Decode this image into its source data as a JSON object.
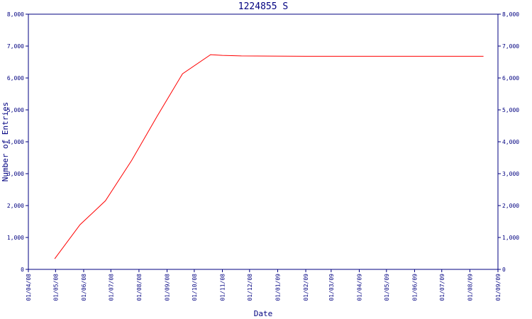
{
  "chart_data": {
    "type": "line",
    "title": "1224855 S",
    "x_label": "Date",
    "y_label": "Number of Entries",
    "x": [
      "2008-04-30",
      "2008-05-28",
      "2008-06-25",
      "2008-07-24",
      "2008-08-21",
      "2008-09-18",
      "2008-10-19",
      "2008-11-01",
      "2008-11-22",
      "2009-02-01",
      "2009-05-01",
      "2009-08-16"
    ],
    "series": [
      {
        "color": "#ff0000",
        "values": [
          330,
          1400,
          2150,
          3420,
          4800,
          6130,
          6730,
          6710,
          6690,
          6680,
          6680,
          6680
        ]
      }
    ],
    "xlim": [
      "2008-04-01",
      "2009-09-01"
    ],
    "xticks": [
      {
        "value": "2008-04-01",
        "label": "01/04/08"
      },
      {
        "value": "2008-05-01",
        "label": "01/05/08"
      },
      {
        "value": "2008-06-01",
        "label": "01/06/08"
      },
      {
        "value": "2008-07-01",
        "label": "01/07/08"
      },
      {
        "value": "2008-08-01",
        "label": "01/08/08"
      },
      {
        "value": "2008-09-01",
        "label": "01/09/08"
      },
      {
        "value": "2008-10-01",
        "label": "01/10/08"
      },
      {
        "value": "2008-11-01",
        "label": "01/11/08"
      },
      {
        "value": "2008-12-01",
        "label": "01/12/08"
      },
      {
        "value": "2009-01-01",
        "label": "01/01/09"
      },
      {
        "value": "2009-02-01",
        "label": "01/02/09"
      },
      {
        "value": "2009-03-01",
        "label": "01/03/09"
      },
      {
        "value": "2009-04-01",
        "label": "01/04/09"
      },
      {
        "value": "2009-05-01",
        "label": "01/05/09"
      },
      {
        "value": "2009-06-01",
        "label": "01/06/09"
      },
      {
        "value": "2009-07-01",
        "label": "01/07/09"
      },
      {
        "value": "2009-08-01",
        "label": "01/08/09"
      },
      {
        "value": "2009-09-01",
        "label": "01/09/09"
      }
    ],
    "ylim": [
      0,
      8000
    ],
    "yticks": [
      0,
      {
        "value": 1000,
        "label": "1,000"
      },
      {
        "value": 2000,
        "label": "2,000"
      },
      {
        "value": 3000,
        "label": "3,000"
      },
      {
        "value": 4000,
        "label": "4,000"
      },
      {
        "value": 5000,
        "label": "5,000"
      },
      {
        "value": 6000,
        "label": "6,000"
      },
      {
        "value": 7000,
        "label": "7,000"
      },
      {
        "value": 8000,
        "label": "8,000"
      }
    ],
    "right_axis_mirror": true,
    "axis_color": "#000080"
  }
}
